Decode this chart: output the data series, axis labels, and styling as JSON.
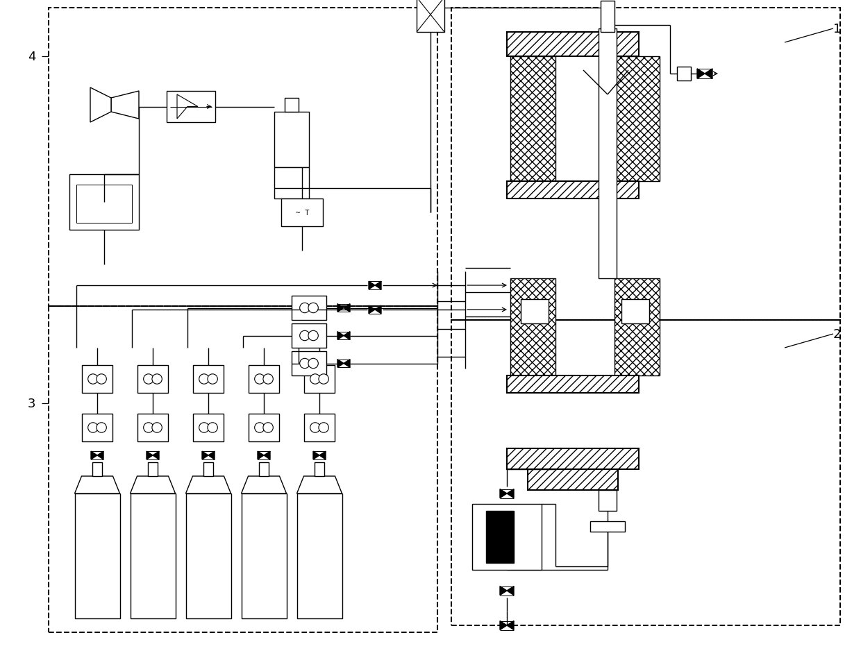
{
  "bg_color": "#ffffff",
  "lc": "#000000",
  "fig_width": 12.4,
  "fig_height": 9.62,
  "dpi": 100,
  "label1": "1",
  "label2": "2",
  "label3": "3",
  "label4": "4"
}
